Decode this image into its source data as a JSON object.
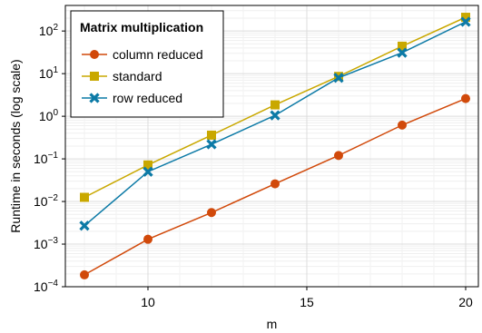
{
  "chart_data": {
    "type": "line",
    "title": "",
    "xlabel": "m",
    "ylabel": "Runtime in seconds (log scale)",
    "xlim": [
      7.4,
      20.4
    ],
    "ylim_log10": [
      -4.0,
      2.6
    ],
    "y_scale": "log",
    "x_ticks": [
      10,
      15,
      20
    ],
    "y_ticks": [
      {
        "exp": -4,
        "base": "10",
        "sup": "−4"
      },
      {
        "exp": -3,
        "base": "10",
        "sup": "−3"
      },
      {
        "exp": -2,
        "base": "10",
        "sup": "−2"
      },
      {
        "exp": -1,
        "base": "10",
        "sup": "−1"
      },
      {
        "exp": 0,
        "base": "10",
        "sup": "0"
      },
      {
        "exp": 1,
        "base": "10",
        "sup": "1"
      },
      {
        "exp": 2,
        "base": "10",
        "sup": "2"
      }
    ],
    "grid": true,
    "legend": {
      "title": "Matrix multiplication",
      "position": "top-left"
    },
    "series": [
      {
        "name": "column reduced",
        "color": "#d1490a",
        "marker": "circle",
        "x": [
          8,
          10,
          12,
          14,
          16,
          18,
          20
        ],
        "y": [
          0.00019,
          0.0013,
          0.0055,
          0.026,
          0.12,
          0.62,
          2.6
        ]
      },
      {
        "name": "standard",
        "color": "#c9a800",
        "marker": "square",
        "x": [
          8,
          10,
          12,
          14,
          16,
          18,
          20
        ],
        "y": [
          0.0125,
          0.072,
          0.36,
          1.85,
          8.6,
          44,
          210
        ]
      },
      {
        "name": "row reduced",
        "color": "#0c7aa6",
        "marker": "x",
        "x": [
          8,
          10,
          12,
          14,
          16,
          18,
          20
        ],
        "y": [
          0.0027,
          0.05,
          0.22,
          1.05,
          8.0,
          31,
          165
        ]
      }
    ]
  }
}
